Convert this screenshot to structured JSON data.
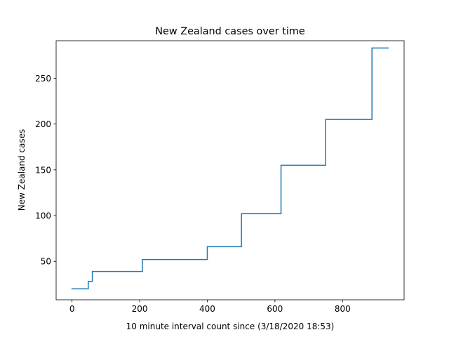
{
  "chart_data": {
    "type": "line",
    "title": "New Zealand cases over time",
    "xlabel": "10 minute interval count since (3/18/2020 18:53)",
    "ylabel": "New Zealand cases",
    "xlim": [
      -47,
      982
    ],
    "ylim": [
      8,
      291
    ],
    "xticks": [
      0,
      200,
      400,
      600,
      800
    ],
    "yticks": [
      50,
      100,
      150,
      200,
      250
    ],
    "grid": false,
    "series": [
      {
        "color": "#1f77b4",
        "x": [
          0,
          48,
          48,
          60,
          60,
          208,
          208,
          400,
          400,
          501,
          501,
          618,
          618,
          750,
          750,
          887,
          887,
          935
        ],
        "y": [
          20,
          20,
          28,
          28,
          39,
          39,
          52,
          52,
          66,
          66,
          102,
          102,
          155,
          155,
          205,
          205,
          283,
          283
        ]
      }
    ]
  }
}
